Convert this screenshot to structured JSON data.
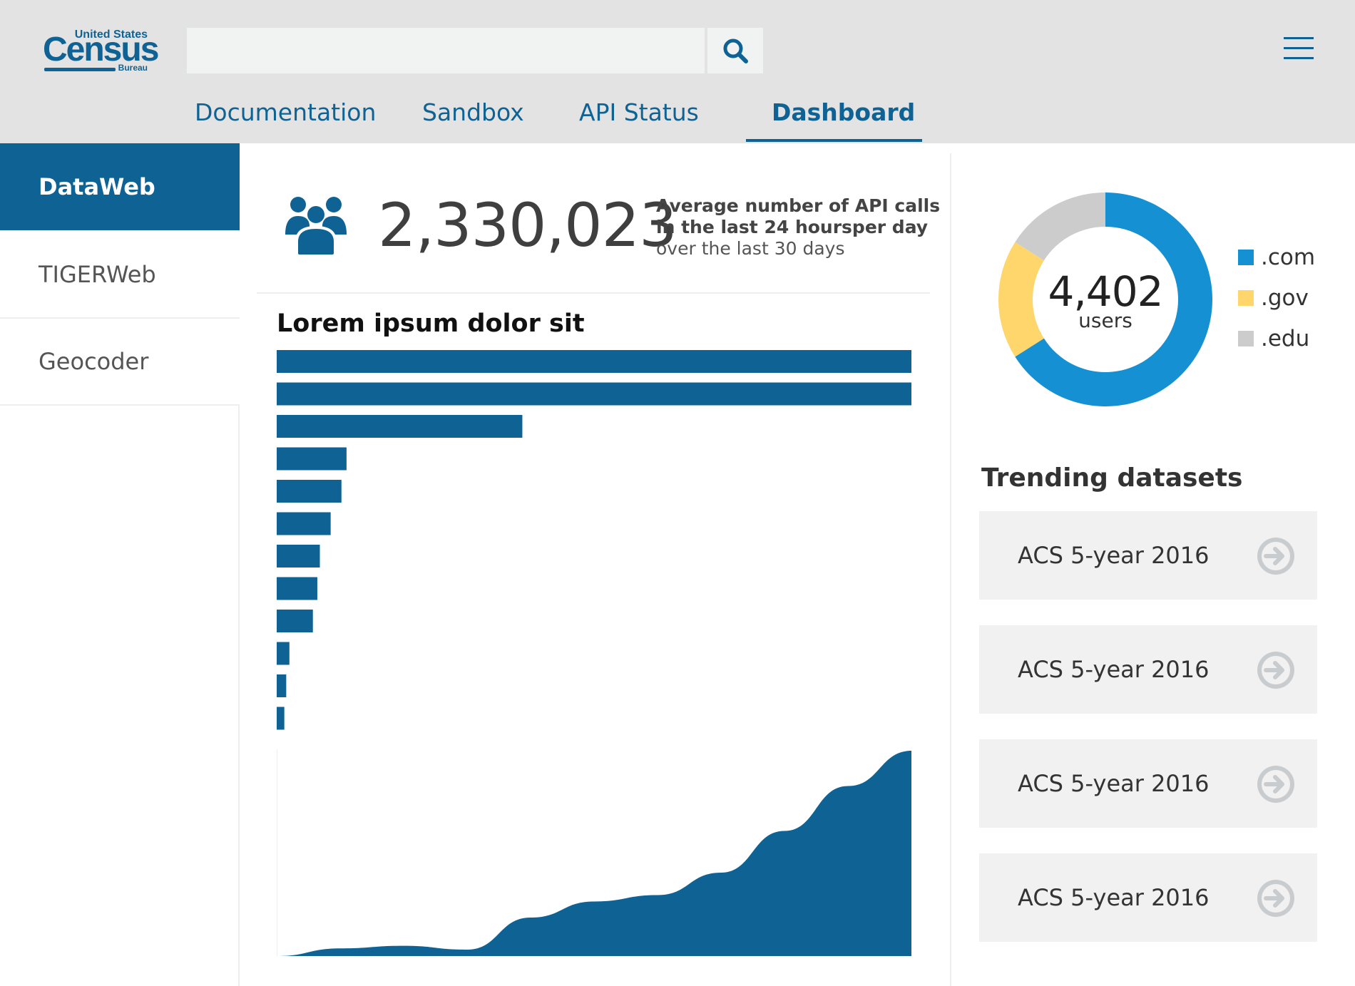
{
  "logo": {
    "top": "United States",
    "main": "Census",
    "bottom": "Bureau"
  },
  "search": {
    "value": "",
    "placeholder": ""
  },
  "nav": {
    "tabs": [
      {
        "label": "Documentation",
        "active": false
      },
      {
        "label": "Sandbox",
        "active": false
      },
      {
        "label": "API Status",
        "active": false
      },
      {
        "label": "Dashboard",
        "active": true
      }
    ]
  },
  "sidebar": {
    "items": [
      {
        "label": "DataWeb",
        "active": true
      },
      {
        "label": "TIGERWeb",
        "active": false
      },
      {
        "label": "Geocoder",
        "active": false
      }
    ]
  },
  "stats": {
    "value": "2,330,023",
    "desc_line1": "Average number of API calls",
    "desc_line2": "in the last 24 hoursper day",
    "desc_line3": "over the last 30 days",
    "icon": "users-icon"
  },
  "colors": {
    "brand": "#0f6294",
    "com": "#1590d3",
    "gov": "#fed66c",
    "edu": "#cccccc",
    "header_bg": "#e3e3e3"
  },
  "chart_data": [
    {
      "type": "bar",
      "title": "Lorem ipsum dolor sit",
      "orientation": "horizontal",
      "categories": [
        "",
        "",
        "",
        "",
        "",
        "",
        "",
        "",
        "",
        "",
        "",
        ""
      ],
      "values": [
        100,
        100,
        38.7,
        11,
        10.2,
        8.5,
        6.8,
        6.4,
        5.7,
        2,
        1.5,
        1.2
      ],
      "xlim": [
        0,
        100
      ],
      "grid": false,
      "color": "#0f6294"
    },
    {
      "type": "area",
      "title": "",
      "x": [
        0,
        1,
        2,
        3,
        4,
        5,
        6,
        7,
        8,
        9,
        10
      ],
      "values": [
        0,
        12,
        16,
        10,
        60,
        85,
        95,
        130,
        195,
        265,
        320
      ],
      "ylim": [
        0,
        320
      ],
      "grid": false,
      "color": "#0f6294"
    },
    {
      "type": "pie",
      "donut": true,
      "center_value": "4,402",
      "center_label": "users",
      "categories": [
        ".com",
        ".gov",
        ".edu"
      ],
      "values": [
        66,
        18,
        16
      ],
      "colors": [
        "#1590d3",
        "#fed66c",
        "#cccccc"
      ],
      "legend": "right"
    }
  ],
  "trending": {
    "title": "Trending datasets",
    "items": [
      {
        "label": "ACS 5-year 2016"
      },
      {
        "label": "ACS 5-year 2016"
      },
      {
        "label": "ACS 5-year 2016"
      },
      {
        "label": "ACS 5-year 2016"
      }
    ]
  }
}
